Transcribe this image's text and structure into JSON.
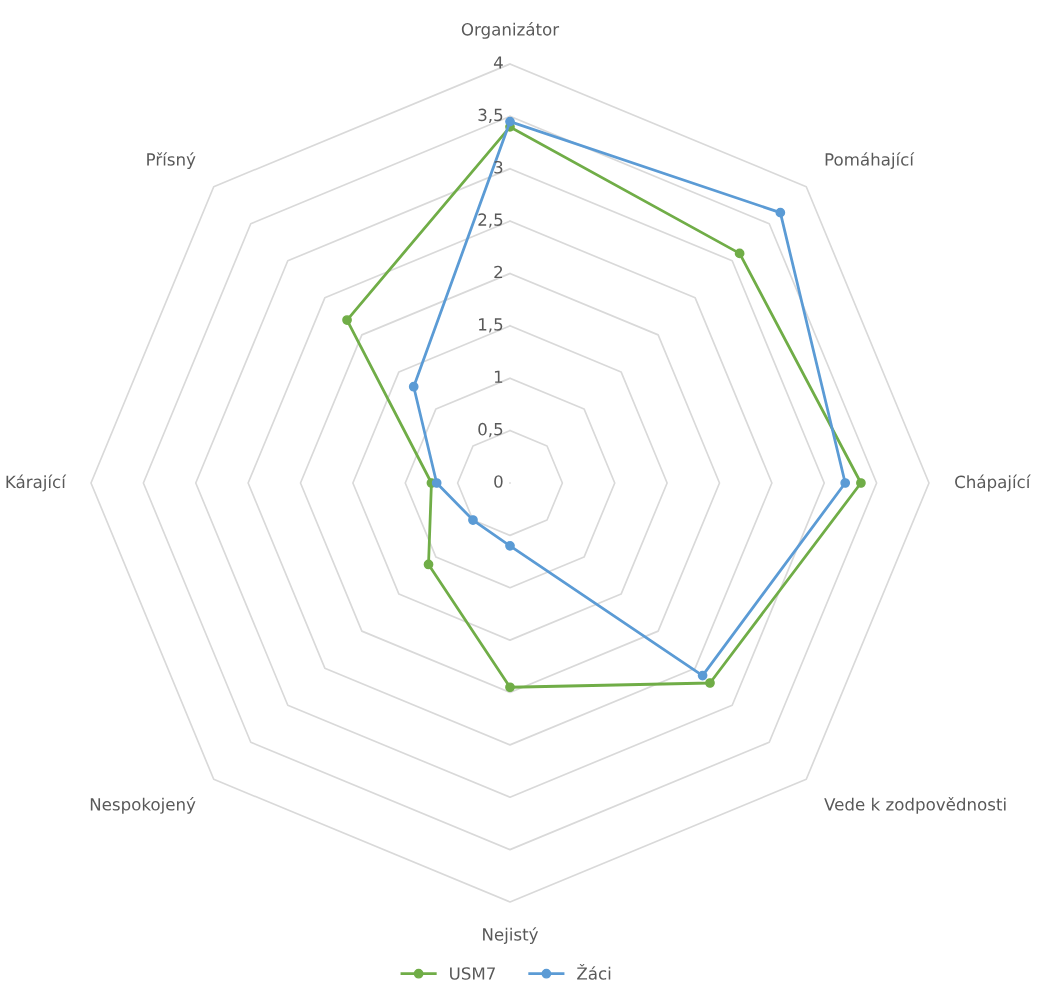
{
  "chart_data": {
    "type": "radar",
    "categories": [
      "Organizátor",
      "Pomáhající",
      "Chápající",
      "Vede k zodpovědnosti",
      "Nejistý",
      "Nespokojený",
      "Kárající",
      "Přísný"
    ],
    "series": [
      {
        "name": "USM7",
        "color": "#70ad47",
        "values": [
          3.4,
          3.1,
          3.35,
          2.7,
          1.95,
          1.1,
          0.75,
          2.2
        ]
      },
      {
        "name": "Žáci",
        "color": "#5b9bd5",
        "values": [
          3.45,
          3.65,
          3.2,
          2.6,
          0.6,
          0.5,
          0.7,
          1.3
        ]
      }
    ],
    "ylim": [
      0,
      4
    ],
    "yticks": [
      0,
      {
        "value": 0.5,
        "label": "0,5"
      },
      1,
      {
        "value": 1.5,
        "label": "1,5"
      },
      2,
      {
        "value": 2.5,
        "label": "2,5"
      },
      3,
      {
        "value": 3.5,
        "label": "3,5"
      },
      4
    ],
    "grid": true,
    "legend": "bottom",
    "marker": "circle",
    "line_style": "solid"
  }
}
